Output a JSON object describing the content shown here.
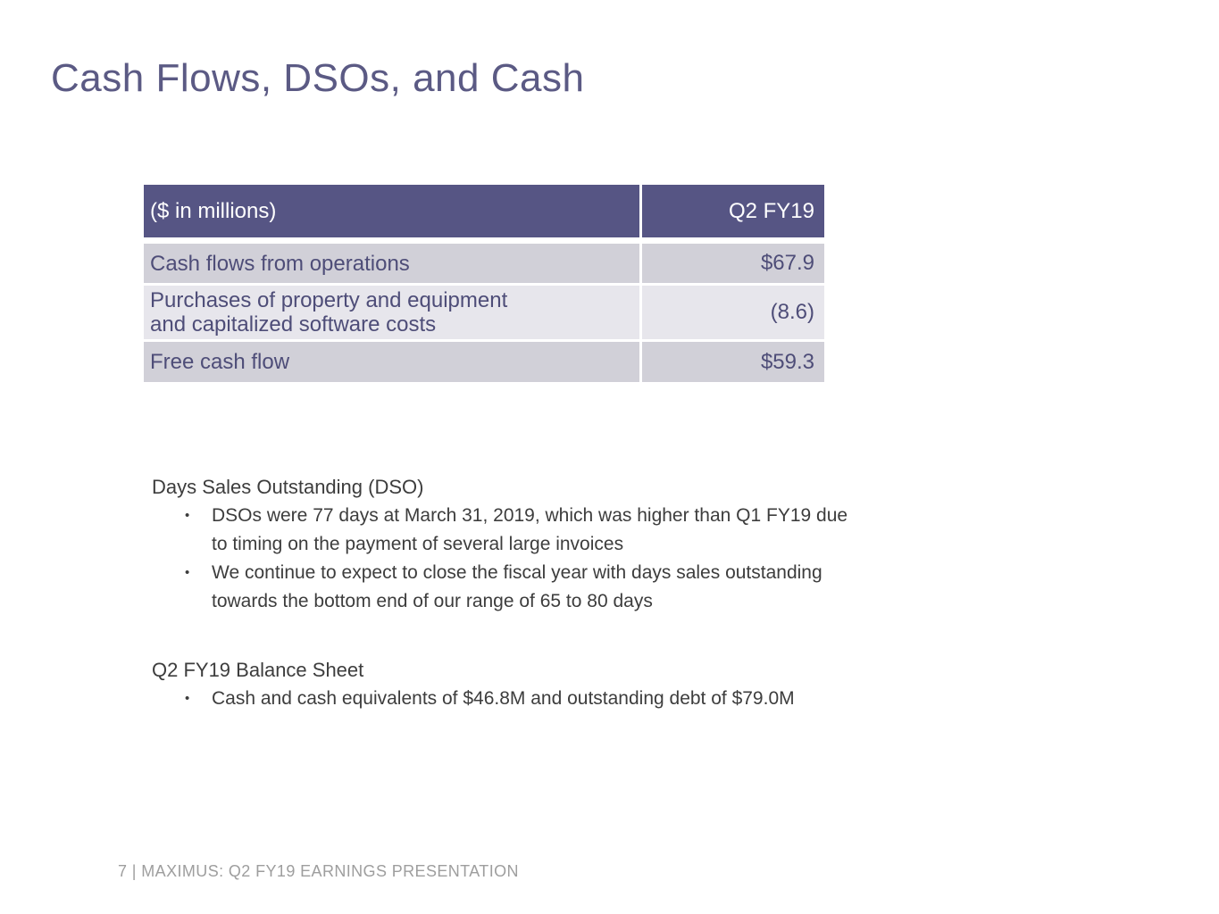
{
  "slide": {
    "title": "Cash Flows, DSOs, and Cash",
    "footer": "7 | MAXIMUS: Q2 FY19 EARNINGS PRESENTATION",
    "bullet_char": "•"
  },
  "colors": {
    "table_header_bg": "#565584",
    "table_row_gray": "#d1d0d8",
    "table_row_light": "#e7e6ec",
    "table_text": "#4e4d78",
    "title_text": "#5b5a84",
    "body_text": "#3d3d3d",
    "footer_text": "#9e9e9e",
    "background": "#ffffff"
  },
  "table": {
    "header": {
      "label": "($ in millions)",
      "value": "Q2 FY19"
    },
    "rows": [
      {
        "label": "Cash flows from operations",
        "value": "$67.9"
      },
      {
        "label": "Purchases of property and equipment\nand capitalized software costs",
        "value": "(8.6)"
      },
      {
        "label": "Free cash flow",
        "value": "$59.3"
      }
    ]
  },
  "sections": [
    {
      "heading": "Days Sales Outstanding (DSO)",
      "bullets": [
        "DSOs were 77 days at March 31, 2019, which was higher than Q1 FY19 due\nto timing on the payment of several large invoices",
        "We continue to expect to close the fiscal year with days sales outstanding\ntowards the bottom end of our range of 65 to 80 days"
      ]
    },
    {
      "heading": "Q2 FY19 Balance Sheet",
      "bullets": [
        "Cash and cash equivalents of $46.8M and outstanding debt of $79.0M"
      ]
    }
  ]
}
